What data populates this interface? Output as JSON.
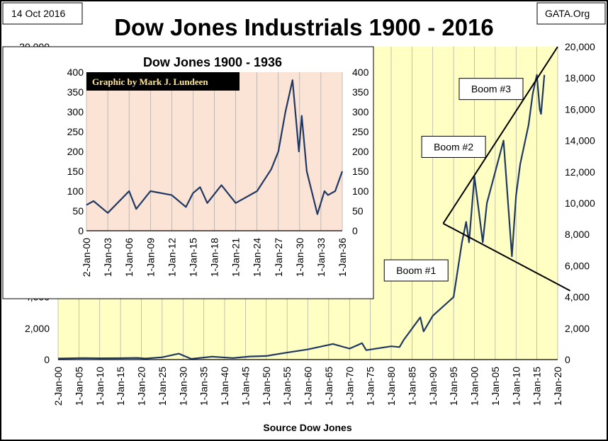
{
  "chart_data": [
    {
      "type": "line",
      "title": "Dow Jones Industrials 1900 - 2016",
      "date_label": "14 Oct 2016",
      "source_label": "GATA.Org",
      "xlabel": "Source Dow Jones",
      "ylabel": "",
      "xlim": [
        1900,
        2020
      ],
      "ylim": [
        0,
        20000
      ],
      "yticks": [
        "0",
        "2,000",
        "4,000",
        "6,000",
        "8,000",
        "10,000",
        "12,000",
        "14,000",
        "16,000",
        "18,000",
        "20,000"
      ],
      "xticks": [
        "2-Jan-00",
        "1-Jan-05",
        "1-Jan-10",
        "1-Jan-15",
        "1-Jan-20",
        "1-Jan-25",
        "1-Jan-30",
        "1-Jan-35",
        "1-Jan-40",
        "1-Jan-45",
        "1-Jan-50",
        "1-Jan-55",
        "1-Jan-60",
        "1-Jan-65",
        "1-Jan-70",
        "1-Jan-75",
        "1-Jan-80",
        "1-Jan-85",
        "1-Jan-90",
        "1-Jan-95",
        "1-Jan-00",
        "1-Jan-05",
        "1-Jan-10",
        "1-Jan-15",
        "1-Jan-20"
      ],
      "grid": true,
      "series": [
        {
          "name": "DJIA",
          "color": "#1f3864",
          "x": [
            1900,
            1906,
            1910,
            1915,
            1919,
            1921,
            1925,
            1929,
            1932,
            1937,
            1942,
            1946,
            1950,
            1955,
            1960,
            1966,
            1970,
            1973,
            1974,
            1980,
            1982,
            1983,
            1987,
            1987.8,
            1990,
            1995,
            1997,
            1998,
            1998.7,
            2000,
            2002,
            2003,
            2007,
            2009,
            2010,
            2011,
            2013,
            2014,
            2015,
            2015.7,
            2016,
            2016.8
          ],
          "y": [
            66,
            100,
            85,
            90,
            110,
            70,
            150,
            380,
            45,
            190,
            100,
            200,
            230,
            450,
            650,
            1000,
            700,
            1050,
            600,
            850,
            800,
            1250,
            2700,
            1800,
            2800,
            4000,
            7500,
            8800,
            7500,
            11700,
            7500,
            10000,
            14000,
            6600,
            10500,
            12500,
            15000,
            17000,
            18200,
            16000,
            15700,
            18200
          ]
        }
      ],
      "annotations": [
        {
          "text": "Boom #1",
          "x": 1986,
          "y": 5700
        },
        {
          "text": "Boom #2",
          "x": 1995,
          "y": 13600
        },
        {
          "text": "Boom #3",
          "x": 2004,
          "y": 17300
        }
      ],
      "trend_lines": [
        {
          "from": [
            1992.5,
            8700
          ],
          "to": [
            2020,
            20000
          ]
        },
        {
          "from": [
            1992.5,
            8700
          ],
          "to": [
            2023,
            4400
          ]
        }
      ]
    },
    {
      "type": "line",
      "title": "Dow Jones 1900 - 1936",
      "credit": "Graphic by Mark J. Lundeen",
      "xlim": [
        1900,
        1936
      ],
      "ylim": [
        0,
        400
      ],
      "yticks": [
        "0",
        "50",
        "100",
        "150",
        "200",
        "250",
        "300",
        "350",
        "400"
      ],
      "xticks": [
        "2-Jan-00",
        "1-Jan-03",
        "1-Jan-06",
        "1-Jan-09",
        "1-Jan-12",
        "1-Jan-15",
        "1-Jan-18",
        "1-Jan-21",
        "1-Jan-24",
        "1-Jan-27",
        "1-Jan-30",
        "1-Jan-33",
        "1-Jan-36"
      ],
      "series": [
        {
          "name": "DJIA",
          "color": "#1f3864",
          "x": [
            1900,
            1901,
            1903,
            1906,
            1907,
            1909,
            1912,
            1914,
            1915,
            1916,
            1917,
            1919,
            1921,
            1924,
            1926,
            1927,
            1928,
            1929,
            1929.9,
            1930.3,
            1931,
            1932.5,
            1933.5,
            1934,
            1935,
            1936
          ],
          "y": [
            65,
            75,
            45,
            100,
            55,
            100,
            90,
            60,
            95,
            110,
            70,
            115,
            70,
            100,
            155,
            200,
            300,
            380,
            200,
            290,
            150,
            42,
            100,
            90,
            100,
            150
          ]
        }
      ]
    }
  ]
}
